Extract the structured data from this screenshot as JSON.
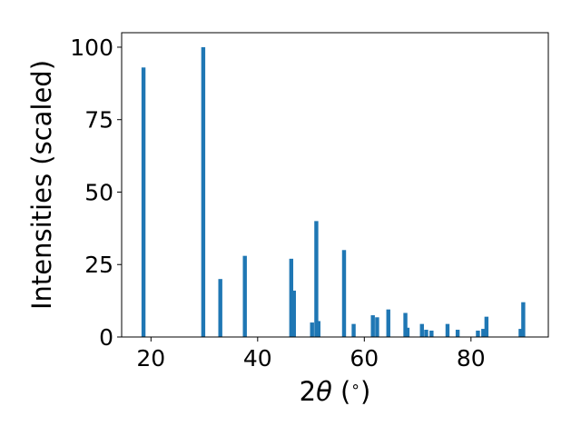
{
  "chart_data": {
    "type": "bar",
    "xlabel_prefix": "2",
    "xlabel_symbol": "θ",
    "xlabel_suffix": " (",
    "xlabel_degree": "∘",
    "xlabel_close": ")",
    "ylabel": "Intensities (scaled)",
    "xlim": [
      14.5,
      94.5
    ],
    "ylim": [
      0,
      105
    ],
    "xticks": [
      20,
      40,
      60,
      80
    ],
    "xtick_labels": [
      "20",
      "40",
      "60",
      "80"
    ],
    "yticks": [
      0,
      25,
      50,
      75,
      100
    ],
    "ytick_labels": [
      "0",
      "25",
      "50",
      "75",
      "100"
    ],
    "bar_width": 0.75,
    "grid": false,
    "color": "#1f77b4",
    "x": [
      18.6,
      29.8,
      33.0,
      37.6,
      46.3,
      46.8,
      50.2,
      51.0,
      51.4,
      56.2,
      58.0,
      61.6,
      62.4,
      64.5,
      67.7,
      68.1,
      70.8,
      71.6,
      72.6,
      75.6,
      77.5,
      81.3,
      82.3,
      82.9,
      89.3,
      89.8
    ],
    "values": [
      93,
      100,
      20,
      28,
      27,
      16,
      5,
      40,
      5.5,
      30,
      4.5,
      7.5,
      6.8,
      9.5,
      8.3,
      3.2,
      4.5,
      2.5,
      2.2,
      4.5,
      2.5,
      2.2,
      2.8,
      7,
      2.8,
      12
    ]
  }
}
